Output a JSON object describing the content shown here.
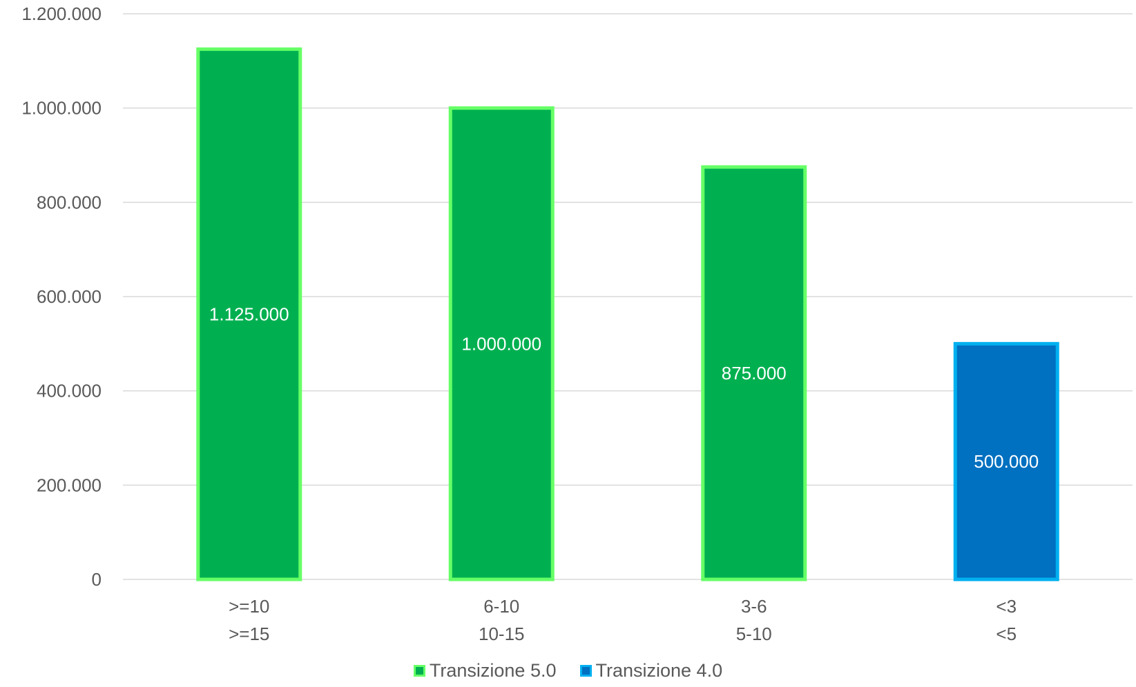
{
  "chart_data": {
    "type": "bar",
    "title": "",
    "xlabel": "",
    "ylabel": "",
    "ylim": [
      0,
      1200000
    ],
    "y_ticks": [
      0,
      200000,
      400000,
      600000,
      800000,
      1000000,
      1200000
    ],
    "y_tick_labels": [
      "0",
      "200.000",
      "400.000",
      "600.000",
      "800.000",
      "1.000.000",
      "1.200.000"
    ],
    "grid": true,
    "legend_position": "bottom",
    "categories": [
      ">=10\n>=15",
      "6-10\n10-15",
      "3-6\n5-10",
      "<3\n<5"
    ],
    "category_lines": [
      [
        ">=10",
        ">=15"
      ],
      [
        "6-10",
        "10-15"
      ],
      [
        "3-6",
        "5-10"
      ],
      [
        "<3",
        "<5"
      ]
    ],
    "bars": [
      {
        "category_index": 0,
        "series": "Transizione 5.0",
        "value": 1125000,
        "label": "1.125.000"
      },
      {
        "category_index": 1,
        "series": "Transizione 5.0",
        "value": 1000000,
        "label": "1.000.000"
      },
      {
        "category_index": 2,
        "series": "Transizione 5.0",
        "value": 875000,
        "label": "875.000"
      },
      {
        "category_index": 3,
        "series": "Transizione 4.0",
        "value": 500000,
        "label": "500.000"
      }
    ],
    "series": [
      {
        "name": "Transizione 5.0",
        "fill": "#00b050",
        "border": "#66ff66"
      },
      {
        "name": "Transizione 4.0",
        "fill": "#0070c0",
        "border": "#00b0f0"
      }
    ]
  }
}
